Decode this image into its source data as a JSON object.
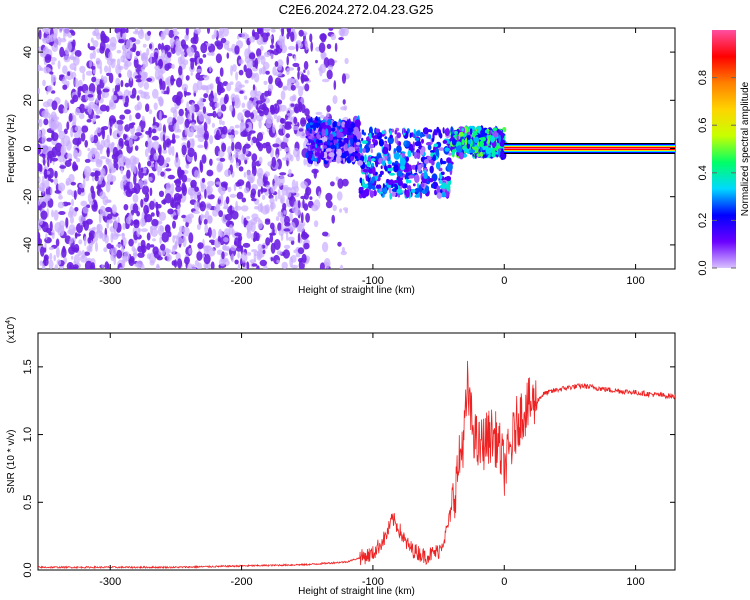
{
  "page": {
    "title": "C2E6.2024.272.04.23.G25"
  },
  "chart_data": [
    {
      "type": "heatmap",
      "title": "C2E6.2024.272.04.23.G25",
      "xlabel": "Height of straight line (km)",
      "ylabel": "Frequency (Hz)",
      "xlim": [
        -355,
        130
      ],
      "ylim": [
        -50,
        50
      ],
      "x_ticks": [
        -300,
        -200,
        -100,
        0,
        100
      ],
      "y_ticks": [
        -40,
        -20,
        0,
        20,
        40
      ],
      "colorbar": {
        "label": "Normalized spectral amplitude",
        "range": [
          0,
          1
        ],
        "ticks": [
          "0.0",
          "0.2",
          "0.4",
          "0.6",
          "0.8"
        ],
        "colormap": [
          "#ffffff",
          "#d9c2ff",
          "#6a00ff",
          "#0000ff",
          "#00d9ff",
          "#00ff66",
          "#c8ff00",
          "#ffd400",
          "#ff7f00",
          "#ff0000",
          "#ff4fa0"
        ]
      },
      "signal_line": {
        "x_start": 0,
        "x_end": 130,
        "frequency": 0,
        "amplitude": 0.85
      },
      "features": [
        {
          "x_range": [
            -355,
            -150
          ],
          "frequency_range": [
            -50,
            50
          ],
          "amplitude": 0.15,
          "description_color": "#6a1fe0"
        },
        {
          "x_range": [
            -150,
            -110
          ],
          "frequency_range": [
            -5,
            12
          ],
          "amplitude": 0.3
        },
        {
          "x_range": [
            -110,
            -40
          ],
          "frequency_range": [
            -20,
            8
          ],
          "amplitude": 0.35
        },
        {
          "x_range": [
            -40,
            0
          ],
          "frequency_range": [
            -3,
            8
          ],
          "amplitude": 0.45
        }
      ]
    },
    {
      "type": "line",
      "xlabel": "Height of straight line (km)",
      "ylabel": "SNR (10 * v/v)",
      "y_multiplier": "(x10",
      "y_multiplier_exp": "4",
      "xlim": [
        -355,
        130
      ],
      "ylim": [
        0,
        1.75
      ],
      "x_ticks": [
        -300,
        -200,
        -100,
        0,
        100
      ],
      "y_ticks": [
        "0.0",
        "0.5",
        "1.0",
        "1.5"
      ],
      "color": "#ee2222",
      "series": [
        {
          "x": [
            -355,
            -300,
            -250,
            -200,
            -150,
            -120,
            -100,
            -90,
            -85,
            -80,
            -75,
            -70,
            -60,
            -50,
            -45,
            -40,
            -35,
            -30,
            -28,
            -25,
            -20,
            -15,
            -10,
            -5,
            0,
            5,
            10,
            15,
            20,
            25,
            30,
            40,
            50,
            60,
            80,
            100,
            120,
            130
          ],
          "y": [
            0.02,
            0.02,
            0.02,
            0.03,
            0.04,
            0.06,
            0.12,
            0.25,
            0.38,
            0.3,
            0.2,
            0.15,
            0.1,
            0.14,
            0.25,
            0.45,
            0.75,
            1.05,
            1.35,
            1.1,
            0.9,
            0.95,
            1.0,
            0.95,
            0.75,
            0.9,
            1.1,
            1.18,
            1.22,
            1.25,
            1.3,
            1.33,
            1.35,
            1.36,
            1.33,
            1.31,
            1.29,
            1.28
          ]
        }
      ]
    }
  ]
}
